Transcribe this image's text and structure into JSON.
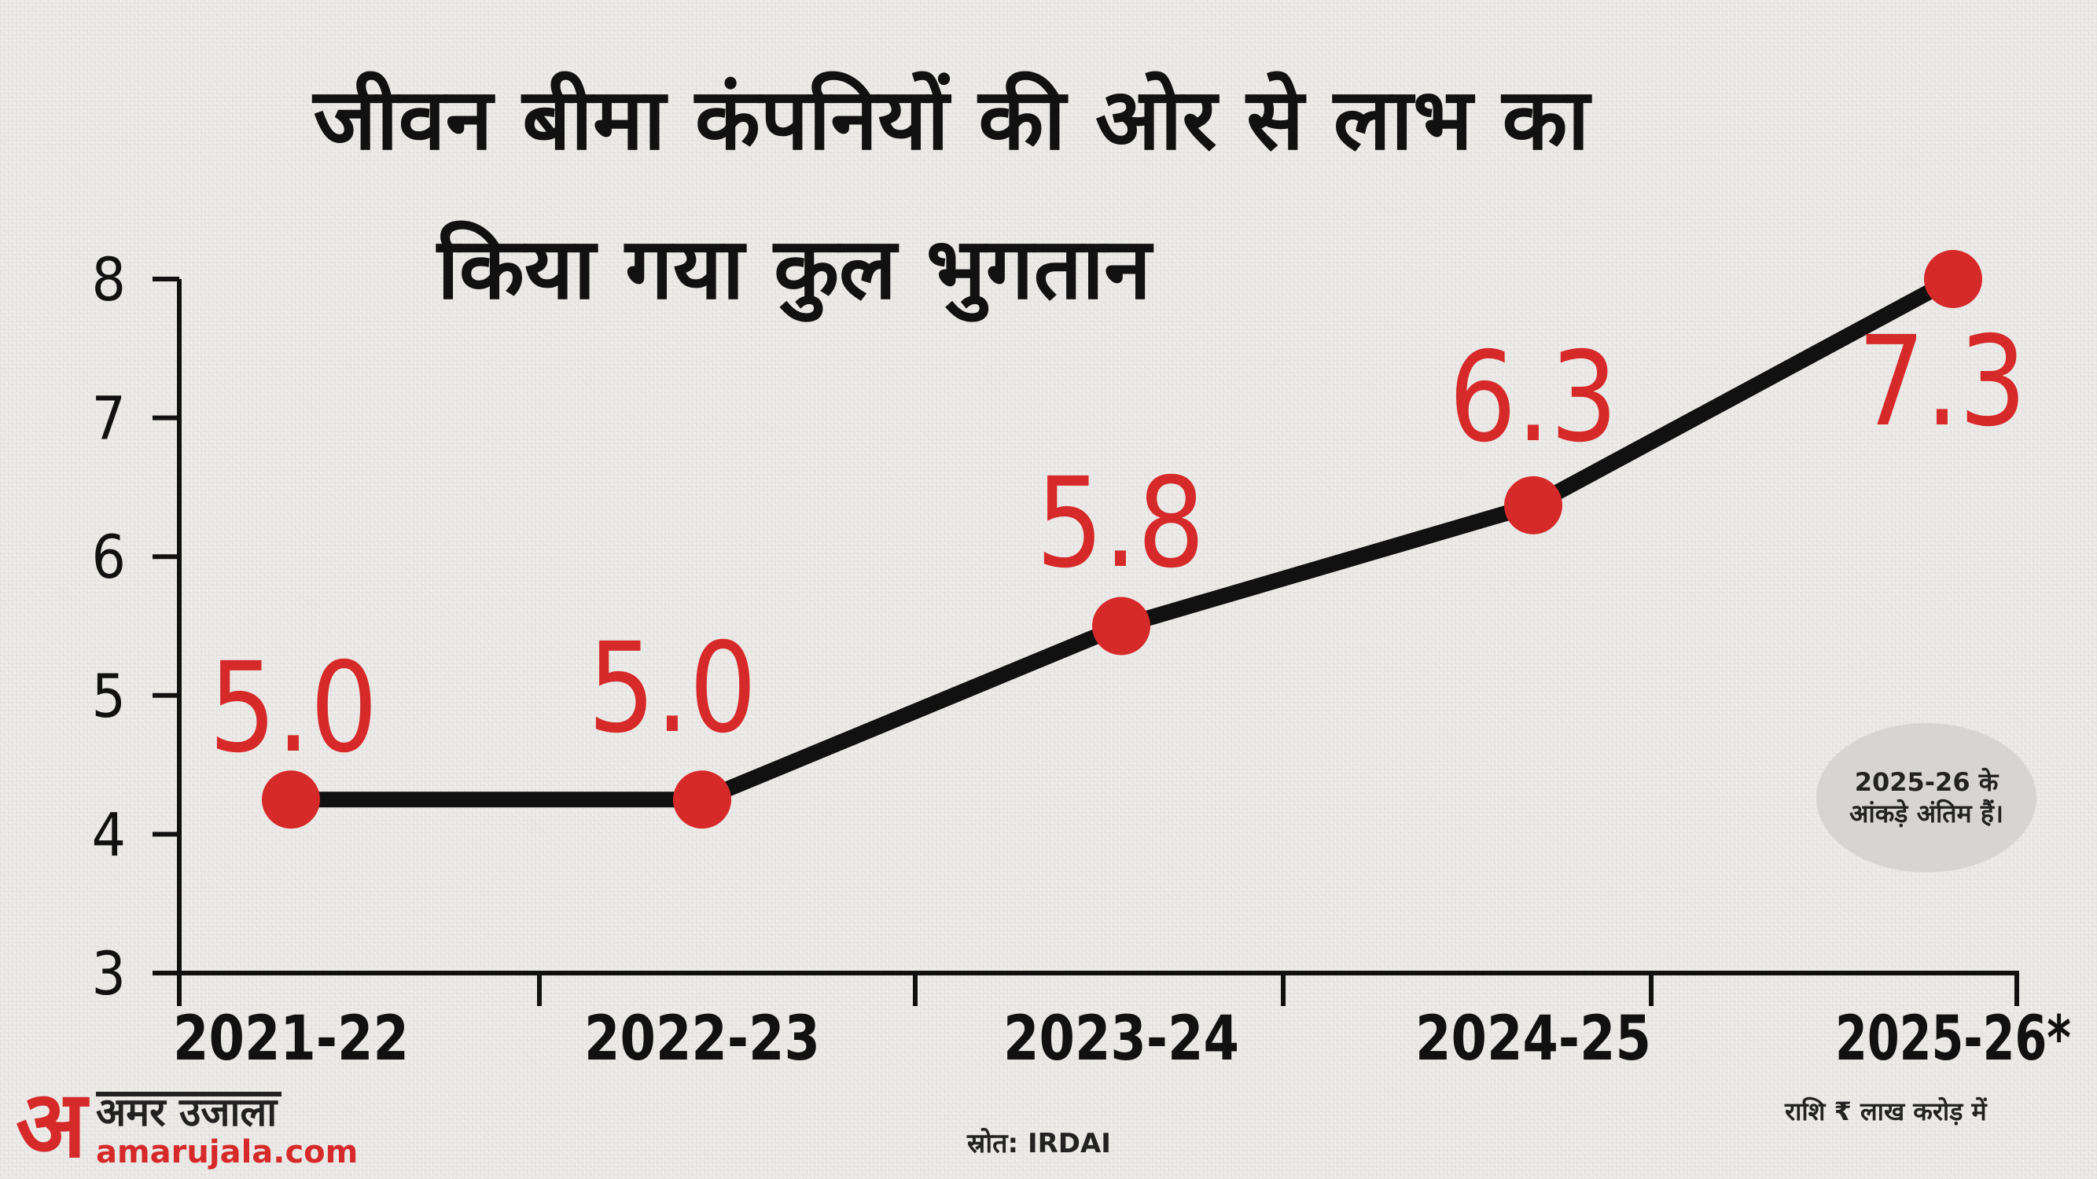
{
  "title_line1": "जीवन बीमा कंपनियों की ओर से लाभ का",
  "title_line2": "किया गया कुल भुगतान",
  "note": "2025-26 के आंकड़े अंतिम हैं।",
  "source": "स्रोत: IRDAI",
  "unit_note": "राशि ₹ लाख करोड़ में",
  "logo": {
    "name": "अमर उजाला",
    "mark": "अ",
    "url": "amarujala.com"
  },
  "colors": {
    "line": "#111111",
    "point": "#d62a2a",
    "label": "#d62a2a",
    "axis": "#111111",
    "note_bg": "#d6d5d3"
  },
  "chart_data": {
    "type": "line",
    "categories": [
      "2021-22",
      "2022-23",
      "2023-24",
      "2024-25",
      "2025-26*"
    ],
    "series": [
      {
        "values": [
          5.0,
          5.0,
          5.8,
          6.3,
          7.3
        ],
        "labels": [
          "5.0",
          "5.0",
          "5.8",
          "6.3",
          "7.3"
        ]
      }
    ],
    "ylim": [
      3,
      8
    ],
    "yticks": [
      "3",
      "4",
      "5",
      "6",
      "7",
      "8"
    ],
    "grid": false
  }
}
